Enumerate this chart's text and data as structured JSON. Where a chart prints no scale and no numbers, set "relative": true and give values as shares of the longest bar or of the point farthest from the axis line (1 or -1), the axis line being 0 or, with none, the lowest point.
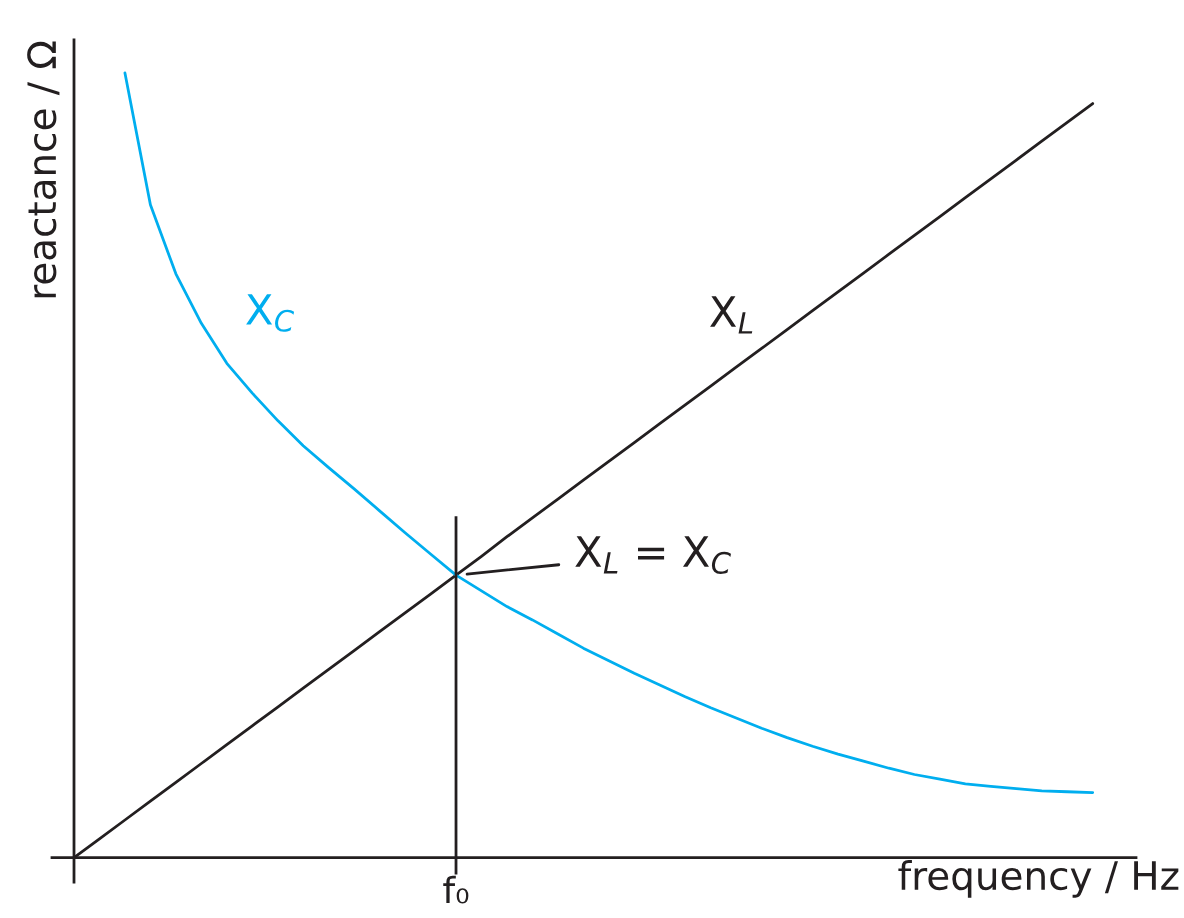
{
  "chart_data": {
    "type": "line",
    "relative": true,
    "xlabel": "frequency / Hz",
    "ylabel": "reactance / Ω",
    "categories": [
      null,
      null,
      null,
      null,
      null,
      null,
      null,
      null,
      null,
      null,
      null,
      null,
      null,
      null,
      null,
      null,
      null,
      null,
      null,
      null,
      null,
      null,
      null,
      null,
      null,
      null,
      null,
      null,
      null,
      null,
      null,
      null,
      null,
      null,
      null,
      null,
      null,
      null,
      null,
      null,
      null
    ],
    "series": [
      {
        "name": "X$_{L}$",
        "color": "#231f20",
        "values": [
          0,
          0.024,
          0.048,
          0.072,
          0.096,
          0.12,
          0.144,
          0.168,
          0.192,
          0.216,
          0.24,
          0.264,
          0.288,
          0.312,
          0.336,
          0.36,
          0.384,
          0.409,
          0.433,
          0.457,
          0.481,
          0.505,
          0.529,
          0.553,
          0.577,
          0.601,
          0.625,
          0.649,
          0.673,
          0.697,
          0.721,
          0.745,
          0.769,
          0.793,
          0.817,
          0.841,
          0.865,
          0.889,
          0.913,
          0.937,
          0.961
        ]
      },
      {
        "name": "X$_{C}$",
        "color": "#00aeef",
        "values": [
          null,
          null,
          1.0,
          0.832,
          0.744,
          0.681,
          0.63,
          0.592,
          0.557,
          0.525,
          0.497,
          0.47,
          0.442,
          0.414,
          0.387,
          0.36,
          0.34,
          0.32,
          0.303,
          0.285,
          0.267,
          0.251,
          0.235,
          0.22,
          0.205,
          0.191,
          0.178,
          0.165,
          0.153,
          0.142,
          0.132,
          0.123,
          0.114,
          0.106,
          0.1,
          0.094,
          0.091,
          0.088,
          0.085,
          0.084,
          0.083
        ]
      }
    ],
    "annotations": [
      "X$_{L}$ = X$_{C}$",
      "f₀"
    ]
  }
}
